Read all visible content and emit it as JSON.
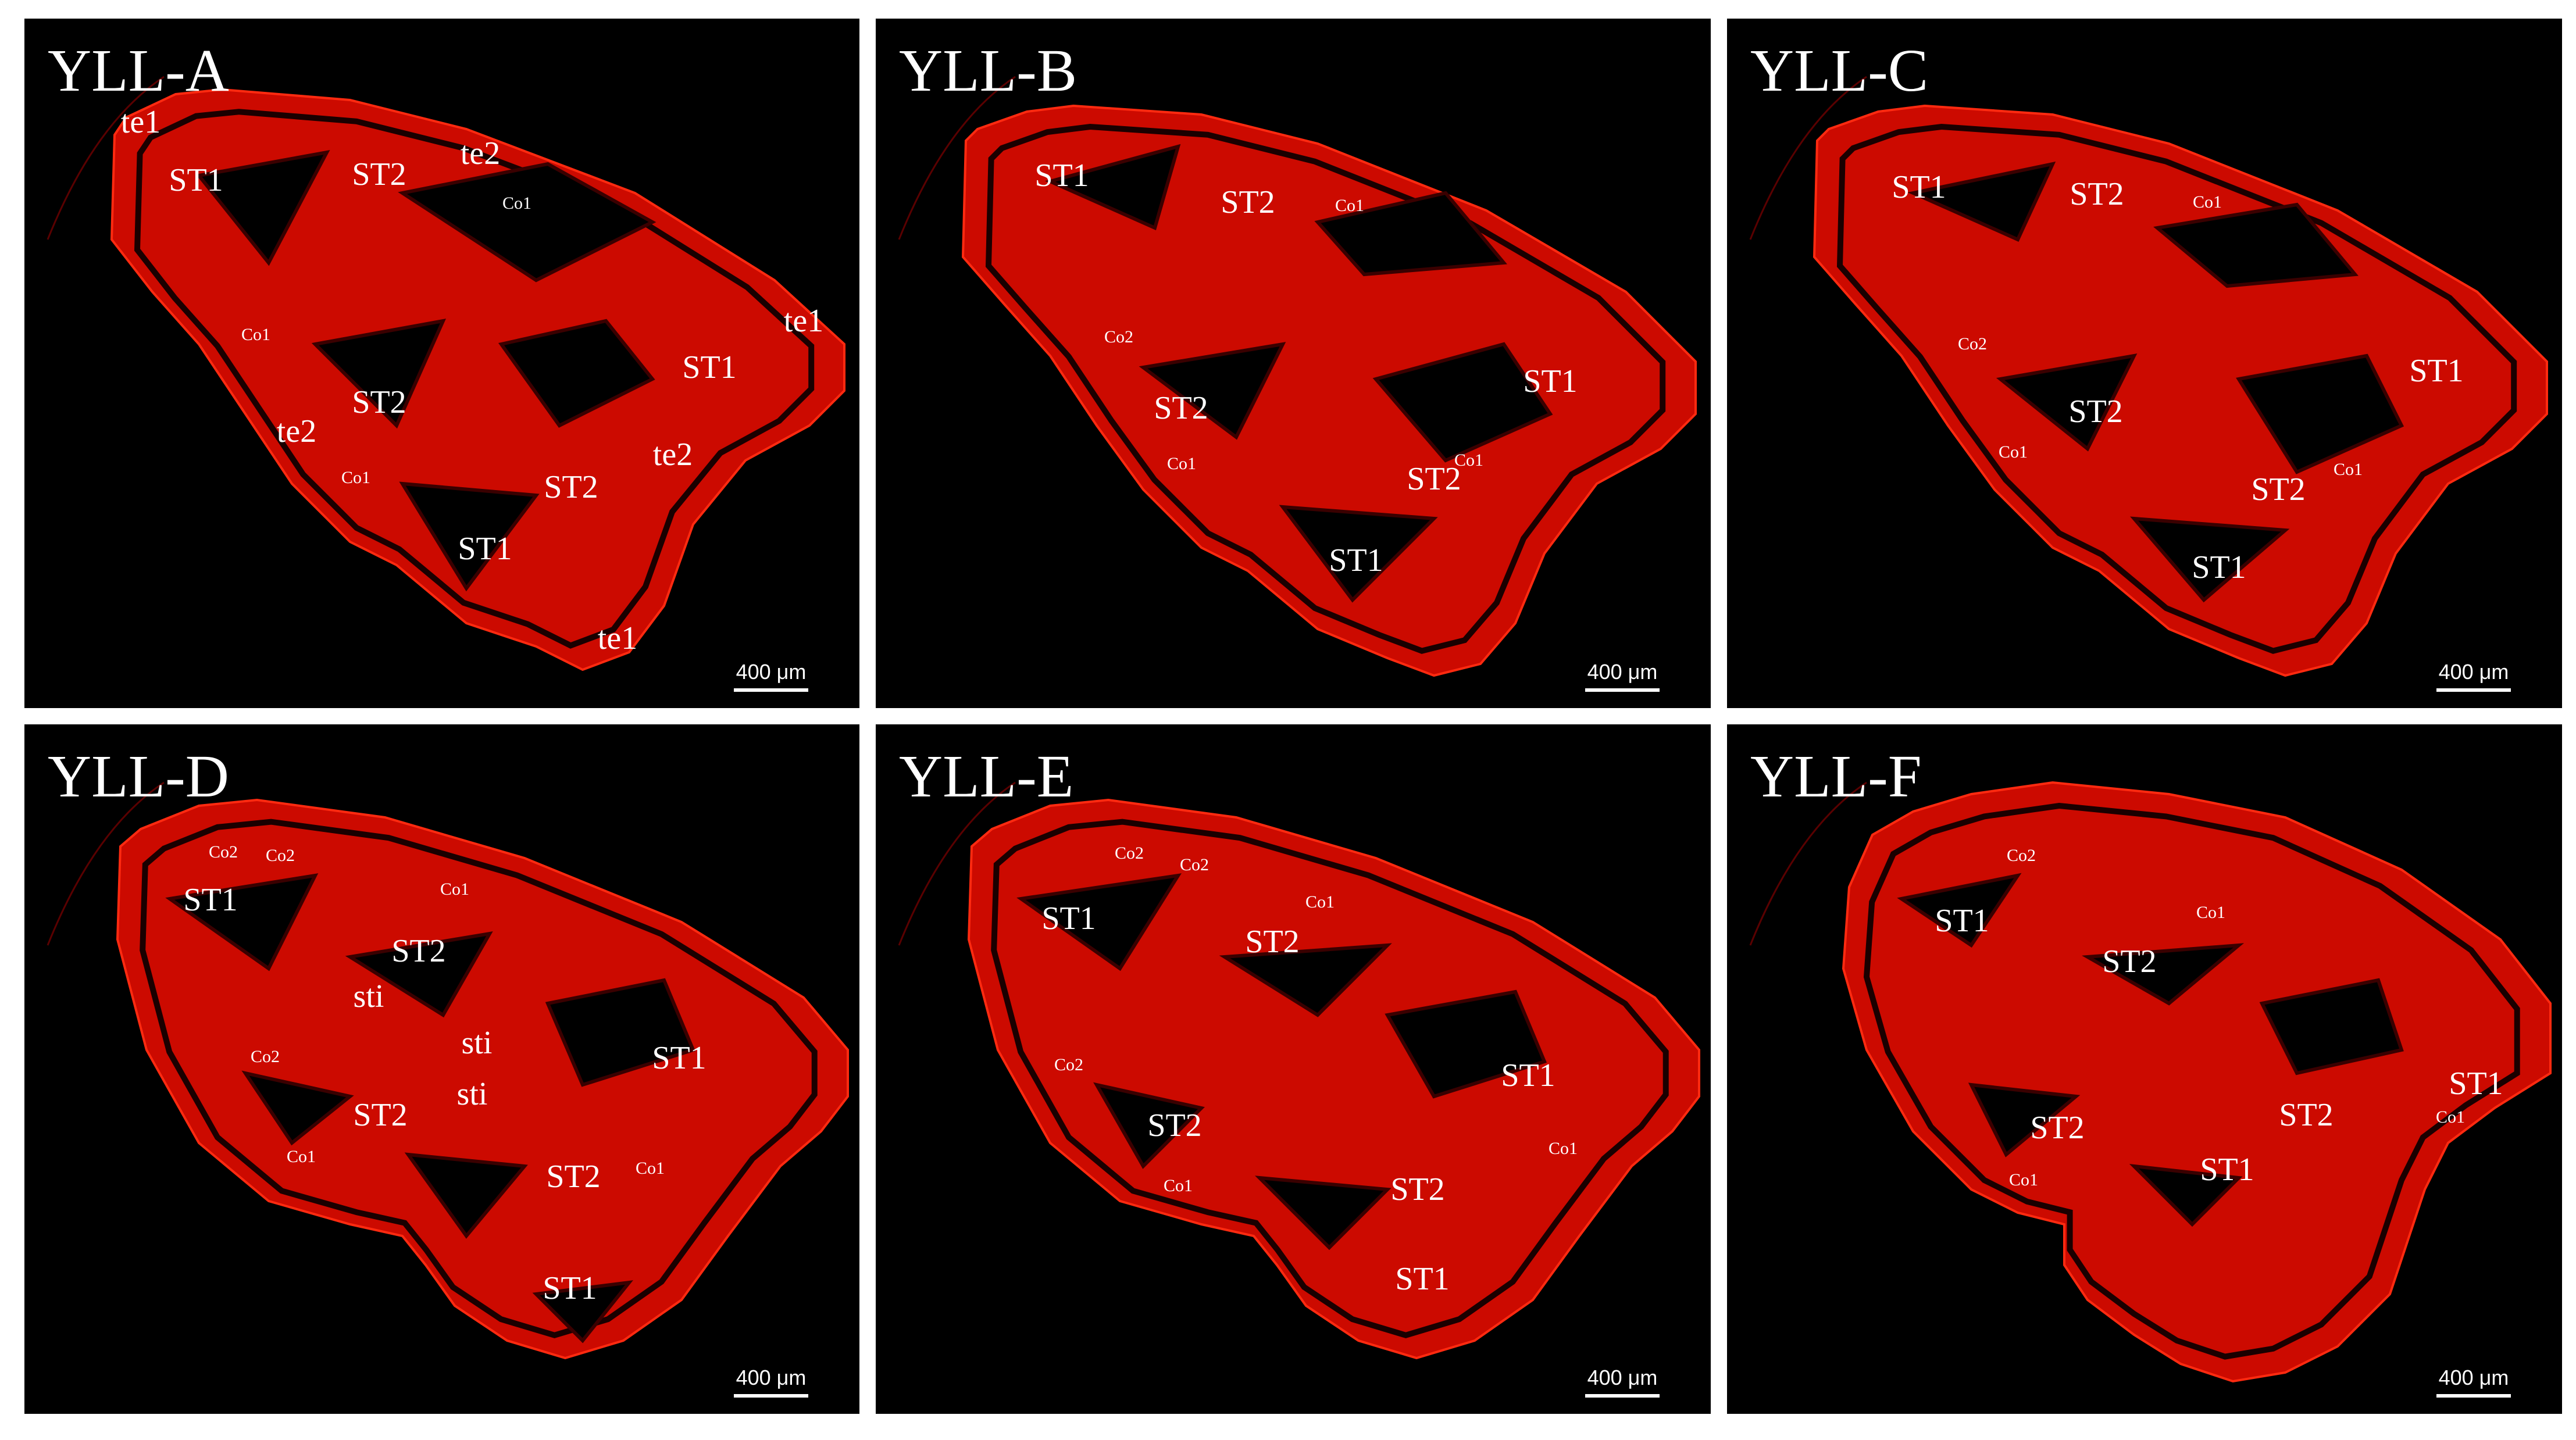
{
  "figure": {
    "background": "#ffffff",
    "panel_background": "#000000",
    "tissue_color": "#cc0a00",
    "panels": [
      {
        "id": "A",
        "title": "YLL-A",
        "scale_bar": "400 μm",
        "labels": [
          {
            "text": "te1",
            "size": "large"
          },
          {
            "text": "ST1",
            "size": "large"
          },
          {
            "text": "ST2",
            "size": "large"
          },
          {
            "text": "te2",
            "size": "large"
          },
          {
            "text": "Co1",
            "size": "small"
          },
          {
            "text": "Co1",
            "size": "small"
          },
          {
            "text": "te1",
            "size": "large"
          },
          {
            "text": "ST2",
            "size": "large"
          },
          {
            "text": "ST1",
            "size": "large"
          },
          {
            "text": "te2",
            "size": "large"
          },
          {
            "text": "Co1",
            "size": "small"
          },
          {
            "text": "te2",
            "size": "large"
          },
          {
            "text": "ST2",
            "size": "large"
          },
          {
            "text": "ST1",
            "size": "large"
          },
          {
            "text": "te1",
            "size": "large"
          }
        ]
      },
      {
        "id": "B",
        "title": "YLL-B",
        "scale_bar": "400 μm",
        "labels": [
          {
            "text": "ST1",
            "size": "large"
          },
          {
            "text": "ST2",
            "size": "large"
          },
          {
            "text": "Co1",
            "size": "small"
          },
          {
            "text": "Co2",
            "size": "small"
          },
          {
            "text": "ST2",
            "size": "large"
          },
          {
            "text": "ST1",
            "size": "large"
          },
          {
            "text": "Co1",
            "size": "small"
          },
          {
            "text": "ST2",
            "size": "large"
          },
          {
            "text": "Co1",
            "size": "small"
          },
          {
            "text": "ST1",
            "size": "large"
          }
        ]
      },
      {
        "id": "C",
        "title": "YLL-C",
        "scale_bar": "400 μm",
        "labels": [
          {
            "text": "ST1",
            "size": "large"
          },
          {
            "text": "ST2",
            "size": "large"
          },
          {
            "text": "Co1",
            "size": "small"
          },
          {
            "text": "Co2",
            "size": "small"
          },
          {
            "text": "ST2",
            "size": "large"
          },
          {
            "text": "ST1",
            "size": "large"
          },
          {
            "text": "Co1",
            "size": "small"
          },
          {
            "text": "ST2",
            "size": "large"
          },
          {
            "text": "Co1",
            "size": "small"
          },
          {
            "text": "ST1",
            "size": "large"
          }
        ]
      },
      {
        "id": "D",
        "title": "YLL-D",
        "scale_bar": "400 μm",
        "labels": [
          {
            "text": "Co2",
            "size": "small"
          },
          {
            "text": "Co2",
            "size": "small"
          },
          {
            "text": "ST1",
            "size": "large"
          },
          {
            "text": "Co1",
            "size": "small"
          },
          {
            "text": "ST2",
            "size": "large"
          },
          {
            "text": "sti",
            "size": "large"
          },
          {
            "text": "sti",
            "size": "large"
          },
          {
            "text": "Co2",
            "size": "small"
          },
          {
            "text": "ST1",
            "size": "large"
          },
          {
            "text": "sti",
            "size": "large"
          },
          {
            "text": "ST2",
            "size": "large"
          },
          {
            "text": "Co1",
            "size": "small"
          },
          {
            "text": "ST2",
            "size": "large"
          },
          {
            "text": "Co1",
            "size": "small"
          },
          {
            "text": "ST1",
            "size": "large"
          }
        ]
      },
      {
        "id": "E",
        "title": "YLL-E",
        "scale_bar": "400 μm",
        "labels": [
          {
            "text": "Co2",
            "size": "small"
          },
          {
            "text": "Co2",
            "size": "small"
          },
          {
            "text": "ST1",
            "size": "large"
          },
          {
            "text": "Co1",
            "size": "small"
          },
          {
            "text": "ST2",
            "size": "large"
          },
          {
            "text": "Co2",
            "size": "small"
          },
          {
            "text": "ST1",
            "size": "large"
          },
          {
            "text": "ST2",
            "size": "large"
          },
          {
            "text": "Co1",
            "size": "small"
          },
          {
            "text": "Co1",
            "size": "small"
          },
          {
            "text": "ST2",
            "size": "large"
          },
          {
            "text": "ST1",
            "size": "large"
          }
        ]
      },
      {
        "id": "F",
        "title": "YLL-F",
        "scale_bar": "400 μm",
        "labels": [
          {
            "text": "Co2",
            "size": "small"
          },
          {
            "text": "ST1",
            "size": "large"
          },
          {
            "text": "Co1",
            "size": "small"
          },
          {
            "text": "ST2",
            "size": "large"
          },
          {
            "text": "ST1",
            "size": "large"
          },
          {
            "text": "ST2",
            "size": "large"
          },
          {
            "text": "ST2",
            "size": "large"
          },
          {
            "text": "Co1",
            "size": "small"
          },
          {
            "text": "Co1",
            "size": "small"
          },
          {
            "text": "ST1",
            "size": "large"
          }
        ]
      }
    ]
  }
}
